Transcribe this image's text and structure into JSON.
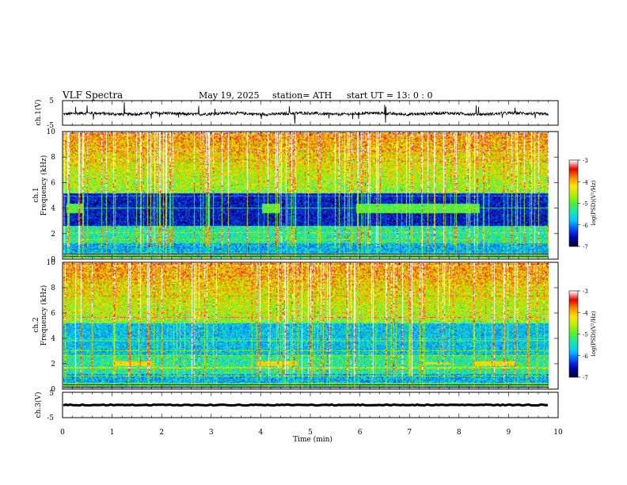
{
  "header": {
    "title": "VLF  Spectra",
    "date": "May 19, 2025",
    "station": "station= ATH",
    "start": "start  UT  =    13: 0   : 0"
  },
  "colors": {
    "colormap": [
      "#000033",
      "#0000b4",
      "#0050ff",
      "#00c8ff",
      "#19e6b4",
      "#50f032",
      "#b4f000",
      "#ffe600",
      "#ff8c00",
      "#e60000",
      "#ffffff"
    ],
    "trace": "#000000"
  },
  "chart_data": [
    {
      "type": "line",
      "id": "ch1-waveform",
      "ylabel": "ch.1(V)",
      "ylim": [
        -5,
        5
      ],
      "yticks": [
        "5",
        "-5"
      ],
      "xlim": [
        0,
        10
      ],
      "description_values": {
        "baseline": 0,
        "noise_amplitude": 0.8,
        "spikes_max": 4.5
      }
    },
    {
      "type": "heatmap",
      "id": "ch1-spectrogram",
      "ylabel_top": "ch.1",
      "ylabel": "Frequency  (kHz)",
      "ylim": [
        0,
        10
      ],
      "yticks": [
        "0",
        "2",
        "4",
        "6",
        "8",
        "10"
      ],
      "xlim": [
        0,
        10
      ],
      "colorbar": {
        "label": "log(PSD)(V²/Hz)",
        "range": [
          -7,
          -3
        ],
        "ticks": [
          "-3",
          "-4",
          "-5",
          "-6",
          "-7"
        ]
      },
      "enhanced_bands": [
        {
          "t": [
            0.05,
            0.4
          ],
          "f": [
            3.6,
            4.4
          ]
        },
        {
          "t": [
            4.0,
            4.35
          ],
          "f": [
            3.6,
            4.4
          ]
        },
        {
          "t": [
            5.9,
            8.4
          ],
          "f": [
            3.6,
            4.4
          ]
        }
      ]
    },
    {
      "type": "heatmap",
      "id": "ch2-spectrogram",
      "ylabel_top": "ch.2",
      "ylabel": "Frequency  (kHz)",
      "ylim": [
        0,
        10
      ],
      "yticks": [
        "0",
        "2",
        "4",
        "6",
        "8",
        "10"
      ],
      "xlim": [
        0,
        10
      ],
      "colorbar": {
        "label": "log(PSD)(V²/Hz)",
        "range": [
          -7,
          -3
        ],
        "ticks": [
          "-3",
          "-4",
          "-5",
          "-6",
          "-7"
        ]
      },
      "enhanced_bands": [
        {
          "t": [
            1.0,
            1.8
          ],
          "f": [
            1.8,
            2.2
          ]
        },
        {
          "t": [
            3.9,
            4.7
          ],
          "f": [
            1.8,
            2.2
          ]
        },
        {
          "t": [
            7.3,
            7.8
          ],
          "f": [
            1.9,
            2.1
          ]
        },
        {
          "t": [
            8.3,
            9.1
          ],
          "f": [
            1.8,
            2.2
          ]
        }
      ]
    },
    {
      "type": "line",
      "id": "ch3-waveform",
      "ylabel": "ch.3(V)",
      "ylim": [
        -5,
        5
      ],
      "yticks": [
        "5",
        "-5"
      ],
      "xlim": [
        0,
        10
      ],
      "description_values": {
        "baseline": 0
      }
    }
  ],
  "xaxis": {
    "label": "Time  (min)",
    "ticks": [
      "0",
      "1",
      "2",
      "3",
      "4",
      "5",
      "6",
      "7",
      "8",
      "9",
      "10"
    ]
  }
}
